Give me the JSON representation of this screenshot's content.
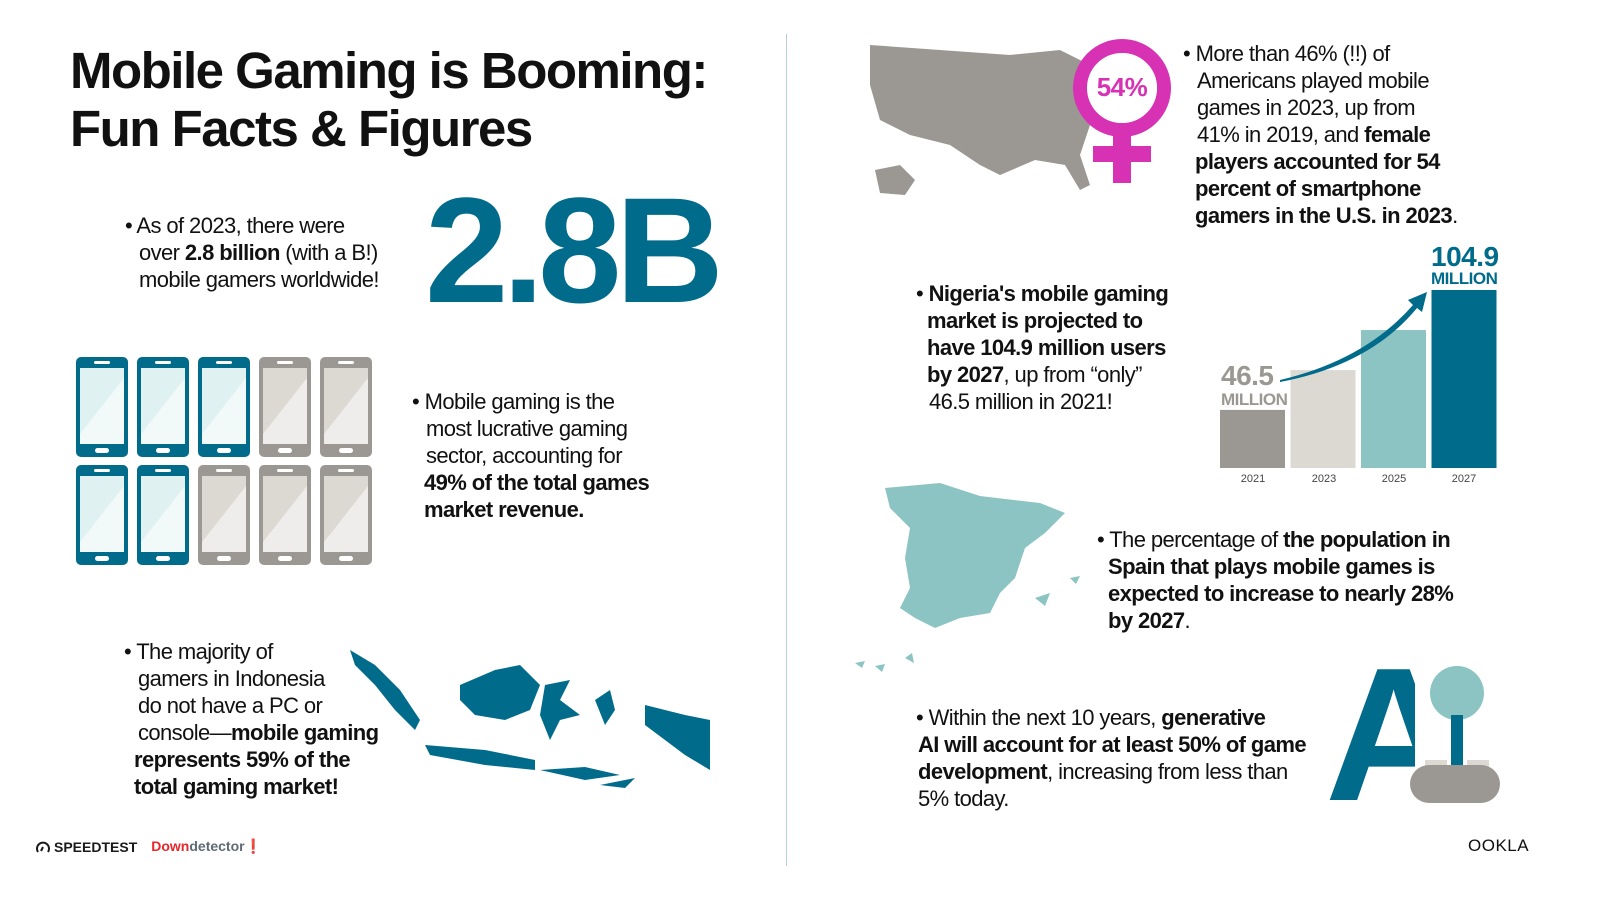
{
  "title": {
    "line1": "Mobile Gaming is Booming:",
    "line2": "Fun Facts & Figures"
  },
  "facts": {
    "gamers": {
      "p1": "As of 2023, there were",
      "p2": "over ",
      "bold": "2.8 billion",
      "p3": " (with a B!)",
      "p4": "mobile gamers worldwide!",
      "big": "2.8B"
    },
    "revenue": {
      "p1": "Mobile gaming is the",
      "p2": "most lucrative gaming",
      "p3": "sector, accounting for",
      "bold1": "49% of the total games",
      "bold2": "market revenue.",
      "phones_total": 10,
      "phones_highlighted": 5
    },
    "indonesia": {
      "p1": "The majority of",
      "p2": "gamers in Indonesia",
      "p3": "do not have a PC or",
      "p4": "console—",
      "bold1": "mobile gaming",
      "bold2": "represents 59% of the",
      "bold3": "total gaming market!"
    },
    "usa": {
      "badge": "54%",
      "p1": "More than 46% (!!) of",
      "p2": "Americans played mobile",
      "p3": "games in 2023, up from",
      "p4": "41% in 2019, and ",
      "bold1": "female",
      "bold2": "players accounted for 54",
      "bold3": "percent of smartphone",
      "bold4": "gamers in the U.S. in 2023",
      "end": "."
    },
    "nigeria": {
      "bold1": "Nigeria's mobile gaming",
      "bold2": "market is projected to",
      "bold3": "have 104.9 million users",
      "bold4": "by 2027",
      "p1": ", up from “only”",
      "p2": "46.5 million in 2021!"
    },
    "spain": {
      "p1": "The percentage of ",
      "bold1": "the population in",
      "bold2": "Spain that plays mobile games is",
      "bold3": "expected to increase to nearly 28%",
      "bold4": "by 2027",
      "end": "."
    },
    "ai": {
      "p1": "Within the next 10 years, ",
      "bold1": "generative",
      "bold2": "AI will account for at least 50% of game",
      "bold3": "development",
      "p2": ", increasing from less than",
      "p3": "5% today.",
      "logo": "AI"
    }
  },
  "chart_data": {
    "type": "bar",
    "categories": [
      "2021",
      "2023",
      "2025",
      "2027"
    ],
    "values": [
      46.5,
      65.9,
      85.4,
      104.9
    ],
    "value_labels": [
      {
        "value": "46.5",
        "unit": "MILLION"
      },
      null,
      null,
      {
        "value": "104.9",
        "unit": "MILLION"
      }
    ],
    "colors": [
      "#9b9893",
      "#dcd8d2",
      "#8cc4c4",
      "#006b8a"
    ],
    "ylim": [
      18.2,
      104.9
    ],
    "grid": false
  },
  "colors": {
    "teal": "#006b8a",
    "light_teal": "#8cc4c4",
    "gray": "#9b9893",
    "magenta": "#d832b4"
  },
  "footer": {
    "speedtest": "SPEEDTEST",
    "downdetector_a": "Down",
    "downdetector_b": "detector",
    "ookla": "OOKLA"
  }
}
